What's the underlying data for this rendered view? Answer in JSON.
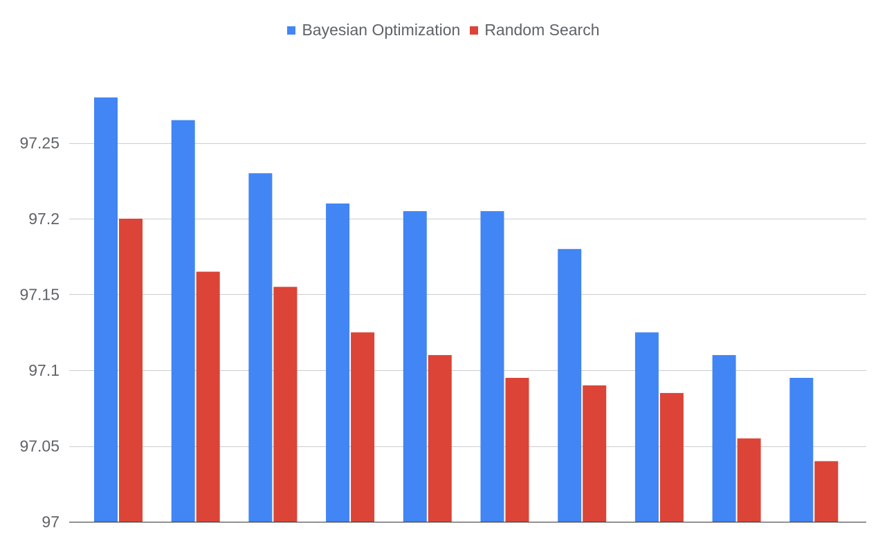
{
  "chart_data": {
    "type": "bar",
    "title": "",
    "xlabel": "",
    "ylabel": "",
    "categories": [
      "",
      "",
      "",
      "",
      "",
      "",
      "",
      "",
      "",
      ""
    ],
    "series": [
      {
        "name": "Bayesian Optimization",
        "color": "#4285f4",
        "values": [
          97.28,
          97.265,
          97.23,
          97.21,
          97.205,
          97.205,
          97.18,
          97.125,
          97.11,
          97.095
        ]
      },
      {
        "name": "Random Search",
        "color": "#db4437",
        "values": [
          97.2,
          97.165,
          97.155,
          97.125,
          97.11,
          97.095,
          97.09,
          97.085,
          97.055,
          97.04
        ]
      }
    ],
    "ylim": [
      97,
      97.29
    ],
    "yticks": [
      97,
      97.05,
      97.1,
      97.15,
      97.2,
      97.25
    ],
    "ytick_labels": [
      "97",
      "97.05",
      "97.1",
      "97.15",
      "97.2",
      "97.25"
    ],
    "grid": true,
    "legend_position": "top-center",
    "colors": {
      "grid": "#cccccc",
      "baseline": "#333333",
      "text": "#5f6368"
    }
  }
}
